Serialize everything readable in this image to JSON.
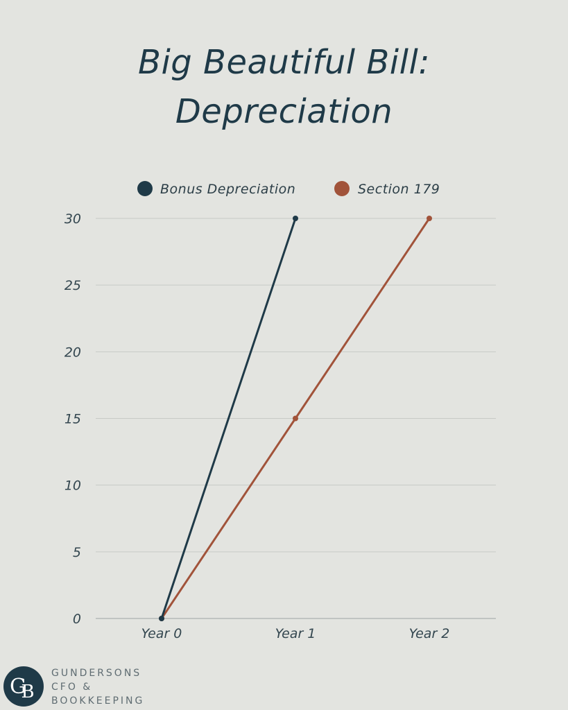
{
  "chart_data": {
    "type": "line",
    "title_lines": [
      "Big Beautiful Bill:",
      "Depreciation"
    ],
    "categories": [
      "Year 0",
      "Year 1",
      "Year 2"
    ],
    "series": [
      {
        "name": "Bonus Depreciation",
        "color": "#1f3a48",
        "values": [
          0,
          30,
          null
        ]
      },
      {
        "name": "Section 179",
        "color": "#a1533a",
        "values": [
          0,
          15,
          30
        ]
      }
    ],
    "yticks": [
      "0",
      "5",
      "10",
      "15",
      "20",
      "25",
      "30"
    ],
    "ylim": [
      0,
      30
    ],
    "grid": true,
    "legend": "top-center"
  },
  "brand": {
    "logo_letters": [
      "G",
      "B"
    ],
    "lines": [
      "GUNDERSONS",
      "CFO &",
      "BOOKKEEPING"
    ]
  }
}
